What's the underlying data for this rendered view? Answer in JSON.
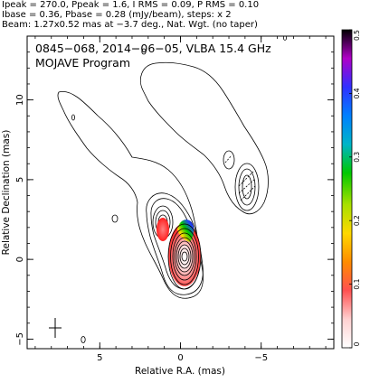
{
  "header": {
    "line1": "Ipeak = 270.0, Ppeak = 1.6, I RMS = 0.09, P RMS = 0.10",
    "line2": "Ibase = 0.36, Pbase = 0.28 (mJy/beam), steps: x 2",
    "line3": "Beam: 1.27x0.52 mas at −3.7 deg., Nat. Wgt. (no taper)"
  },
  "chart_data": {
    "type": "contour",
    "annotations": [
      "0845−068, 2014−06−05, VLBA 15.4 GHz",
      "MOJAVE Program"
    ],
    "xlabel": "Relative R.A. (mas)",
    "ylabel": "Relative Declination (mas)",
    "xlim": [
      9.5,
      -9.5
    ],
    "ylim": [
      -5.6,
      14.0
    ],
    "x_ticks": [
      {
        "v": 5,
        "label": "5"
      },
      {
        "v": 0,
        "label": "0"
      },
      {
        "v": -5,
        "label": "−5"
      }
    ],
    "y_ticks": [
      {
        "v": -5,
        "label": "−5"
      },
      {
        "v": 0,
        "label": "0"
      },
      {
        "v": 5,
        "label": "5"
      },
      {
        "v": 10,
        "label": "10"
      }
    ],
    "colorbar": {
      "range": [
        0,
        0.5
      ],
      "ticks": [
        {
          "v": 0,
          "label": "0"
        },
        {
          "v": 0.1,
          "label": "0.1"
        },
        {
          "v": 0.2,
          "label": "0.2"
        },
        {
          "v": 0.3,
          "label": "0.3"
        },
        {
          "v": 0.4,
          "label": "0.4"
        },
        {
          "v": 0.5,
          "label": "0.5"
        }
      ],
      "colors": [
        "#ffffff",
        "#ff5050",
        "#ff8c00",
        "#ffd800",
        "#a8e000",
        "#00c800",
        "#00b4c8",
        "#0080ff",
        "#3030ff",
        "#8020ff",
        "#c000c8",
        "#000000"
      ]
    },
    "core": {
      "x": 0.0,
      "y": 0.0
    },
    "jet_components": [
      {
        "x": 1.4,
        "y": 2.0
      },
      {
        "x": -3.9,
        "y": 4.4
      },
      {
        "x": -2.6,
        "y": 5.3
      }
    ],
    "polarized_regions": [
      {
        "x": 0.3,
        "y": 0.6,
        "peak": 0.45
      },
      {
        "x": 1.3,
        "y": 1.6,
        "peak": 0.15
      }
    ]
  }
}
